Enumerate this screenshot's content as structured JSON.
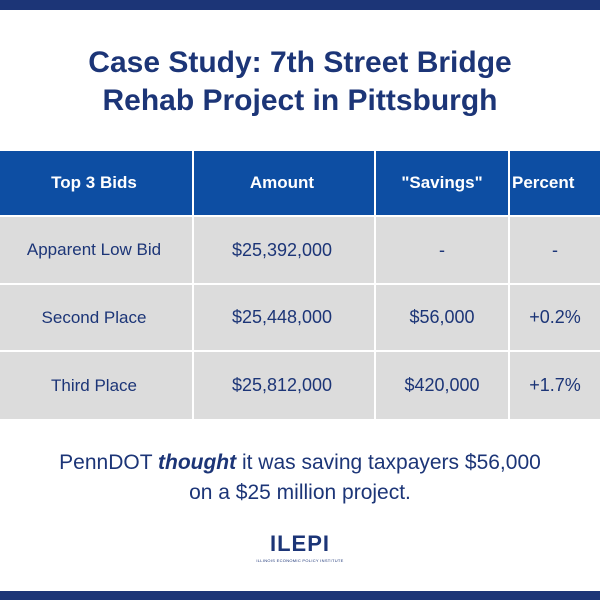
{
  "title": {
    "line1": "Case Study: 7th Street Bridge",
    "line2": "Rehab Project in Pittsburgh"
  },
  "table": {
    "headers": [
      "Top 3 Bids",
      "Amount",
      "\"Savings\"",
      "Percent"
    ],
    "rows": [
      {
        "label": "Apparent Low Bid",
        "amount": "$25,392,000",
        "savings": "-",
        "percent": "-"
      },
      {
        "label": "Second Place",
        "amount": "$25,448,000",
        "savings": "$56,000",
        "percent": "+0.2%"
      },
      {
        "label": "Third Place",
        "amount": "$25,812,000",
        "savings": "$420,000",
        "percent": "+1.7%"
      }
    ]
  },
  "caption": {
    "before": "PennDOT ",
    "emphasis": "thought",
    "after": " it was saving taxpayers $56,000",
    "line2": "on a $25 million project."
  },
  "logo": {
    "word": "ILEPI",
    "tagline": "ILLINOIS ECONOMIC POLICY INSTITUTE"
  },
  "colors": {
    "navy": "#1c3577",
    "header_blue": "#0d4ea3",
    "row_gray": "#dcdcdc"
  }
}
